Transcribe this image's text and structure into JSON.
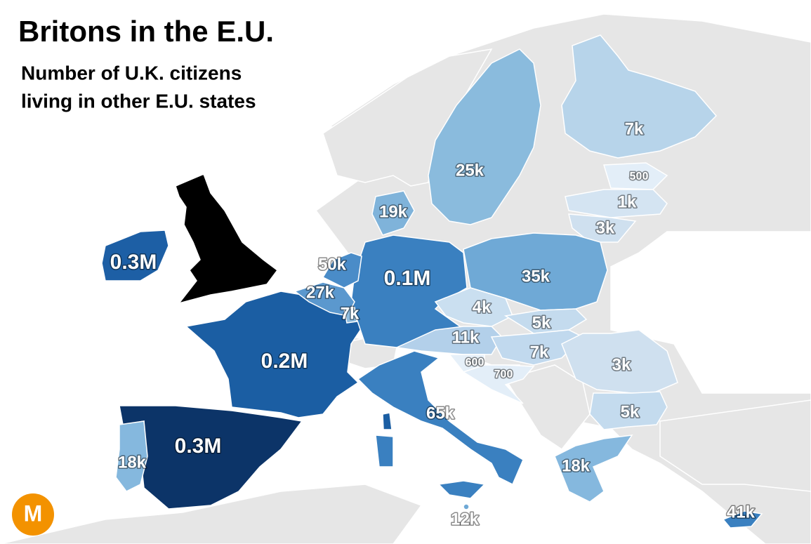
{
  "header": {
    "title": "Britons in the E.U.",
    "subtitle_lines": [
      "Number of U.K. citizens",
      "living in other E.U. states"
    ]
  },
  "map": {
    "labels": [
      "0.3M",
      "0.3M",
      "0.2M",
      "0.1M",
      "65k",
      "50k",
      "35k",
      "27k",
      "25k",
      "19k",
      "18k",
      "18k",
      "12k",
      "41k",
      "11k",
      "7k",
      "7k",
      "7k",
      "5k",
      "5k",
      "4k",
      "3k",
      "3k",
      "1k",
      "500",
      "600",
      "700"
    ]
  },
  "logo": {
    "text": "M"
  }
}
